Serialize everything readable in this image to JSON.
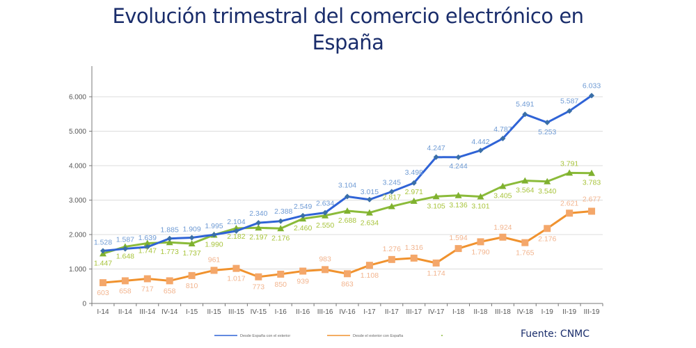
{
  "title_line1": "Evolución trimestral del comercio electrónico en",
  "title_line2": "España",
  "source": "Fuente: CNMC",
  "chart_data": {
    "type": "line",
    "title": "Evolución trimestral del comercio electrónico en España",
    "xlabel": "",
    "ylabel": "",
    "ylim": [
      0,
      6000
    ],
    "yticks": [
      0,
      1000,
      2000,
      3000,
      4000,
      5000,
      6000
    ],
    "ytick_labels": [
      "0",
      "1.000",
      "2.000",
      "3.000",
      "4.000",
      "5.000",
      "6.000"
    ],
    "grid": true,
    "legend_position": "bottom",
    "categories": [
      "I-14",
      "II-14",
      "III-14",
      "IV-14",
      "I-15",
      "II-15",
      "III-15",
      "IV-15",
      "I-16",
      "II-16",
      "III-16",
      "IV-16",
      "I-17",
      "II-17",
      "III-17",
      "IV-17",
      "I-18",
      "II-18",
      "III-18",
      "IV-18",
      "I-19",
      "II-19",
      "III-19"
    ],
    "series": [
      {
        "name": "Desde España con el exterior",
        "color": "#2f63d6",
        "label_color": "#6f9bd4",
        "marker": "diamond",
        "values": [
          1528,
          1587,
          1639,
          1885,
          1909,
          1995,
          2104,
          2340,
          2388,
          2549,
          2634,
          3104,
          3015,
          3245,
          3498,
          4247,
          4244,
          4442,
          4787,
          5491,
          5253,
          5587,
          6033
        ],
        "labels": [
          "1.528",
          "1.587",
          "1.639",
          "1.885",
          "1.909",
          "1.995",
          "2.104",
          "2.340",
          "2.388",
          "2.549",
          "2.634",
          "3.104",
          "3.015",
          "3.245",
          "3.498",
          "4.247",
          "4.244",
          "4.442",
          "4.787",
          "5.491",
          "5.253",
          "5.587",
          "6.033"
        ]
      },
      {
        "name": "Desde el exterior con España",
        "color": "#f0922e",
        "label_color": "#f2b48e",
        "marker": "square",
        "values": [
          603,
          658,
          717,
          658,
          810,
          961,
          1017,
          773,
          850,
          939,
          983,
          863,
          1108,
          1276,
          1316,
          1174,
          1594,
          1790,
          1924,
          1765,
          2176,
          2621,
          2677
        ],
        "labels": [
          "603",
          "658",
          "717",
          "658",
          "810",
          "961",
          "1.017",
          "773",
          "850",
          "939",
          "983",
          "863",
          "1.108",
          "1.276",
          "1.316",
          "1.174",
          "1.594",
          "1.790",
          "1.924",
          "1.765",
          "2.176",
          "2.621",
          "2.677"
        ]
      },
      {
        "name": "",
        "color": "#8bbb3a",
        "label_color": "#a8c43c",
        "marker": "triangle",
        "values": [
          1447,
          1648,
          1747,
          1773,
          1737,
          1990,
          2182,
          2197,
          2176,
          2460,
          2550,
          2688,
          2634,
          2817,
          2971,
          3105,
          3136,
          3101,
          3405,
          3564,
          3540,
          3791,
          3783
        ],
        "labels": [
          "1.447",
          "1.648",
          "1.747",
          "1.773",
          "1.737",
          "1.990",
          "2.182",
          "2.197",
          "2.176",
          "2.460",
          "2.550",
          "2.688",
          "2.634",
          "2.817",
          "2.971",
          "3.105",
          "3.136",
          "3.101",
          "3.405",
          "3.564",
          "3.540",
          "3.791",
          "3.783"
        ]
      }
    ]
  }
}
